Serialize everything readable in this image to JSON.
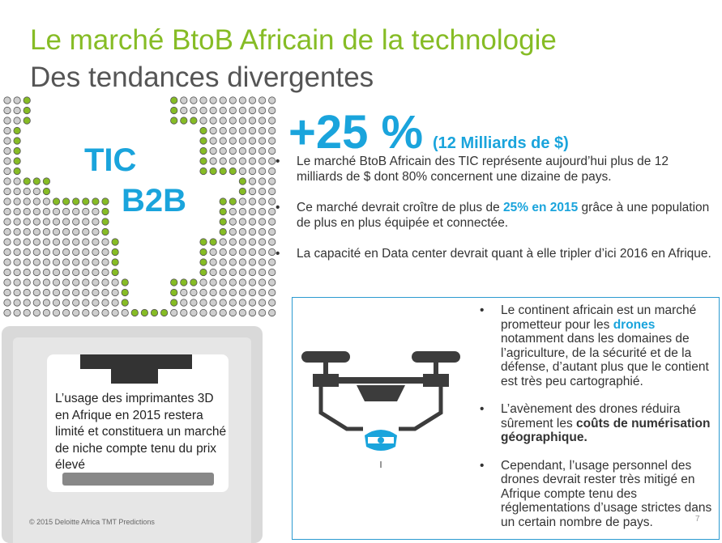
{
  "title": "Le marché BtoB Africain de la technologie",
  "subtitle": "Des tendances divergentes",
  "map": {
    "label_tic": "TIC",
    "label_b2b": "B2B"
  },
  "stat": {
    "value": "+25 %",
    "sub": "(12 Milliards de $)"
  },
  "bullet_char": "•",
  "bullets_top": [
    {
      "text": "Le marché BtoB Africain des TIC représente aujourd’hui plus de 12 milliards de $ dont 80% concernent une dizaine de pays."
    },
    {
      "before": "Ce marché devrait croître de plus de ",
      "highlight": "25% en 2015",
      "after": " grâce à une population de plus en plus équipée et connectée."
    },
    {
      "text": "La capacité en Data center  devrait quant à elle tripler d’ici 2016 en Afrique."
    }
  ],
  "printer_text": "L’usage des imprimantes 3D en Afrique en 2015 restera limité et constituera un marché de niche compte tenu du prix élevé",
  "copyright": "© 2015 Deloitte Africa TMT Predictions",
  "drone_bullets": [
    {
      "before": "Le continent africain est un marché prometteur pour les ",
      "highlight": "drones",
      "after": " notamment dans les domaines de l’agriculture, de la sécurité et de la défense, d’autant plus que le contient est  très peu cartographié."
    },
    {
      "before": "L’avènement des drones réduira sûrement les ",
      "bold": "coûts de numérisation géographique."
    },
    {
      "text": "Cependant, l’usage personnel des drones devrait rester très mitigé en Afrique compte tenu des réglementations d’usage strictes dans un certain nombre de pays."
    }
  ],
  "page_number": "7",
  "colors": {
    "green": "#86bc25",
    "blue": "#1aa4dc",
    "dark": "#333333",
    "dot_gray": "#cccccc"
  },
  "icons": [
    "africa-dot-map-icon",
    "3d-printer-icon",
    "drone-icon"
  ]
}
